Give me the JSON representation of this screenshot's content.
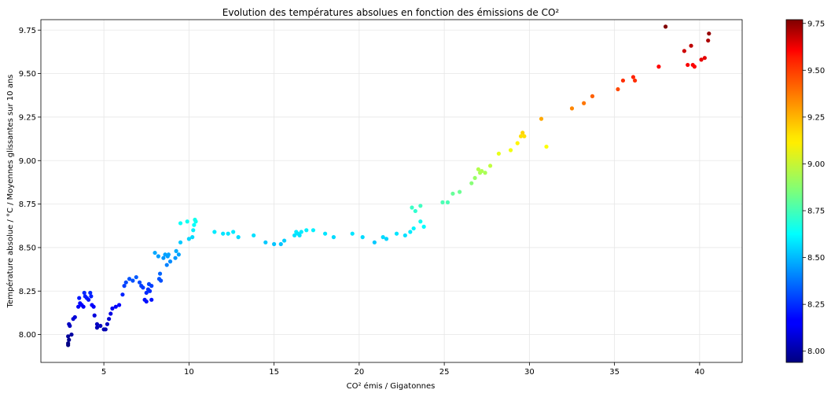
{
  "chart_data": {
    "type": "scatter",
    "title": "Evolution des températures absolues en fonction des émissions de CO²",
    "xlabel": "CO² émis / Gigatonnes",
    "ylabel": "Température absolue / °C / Moyennes glissantes sur 10 ans",
    "xlim": [
      1.3,
      42.5
    ],
    "ylim": [
      7.84,
      9.81
    ],
    "x_ticks": [
      5,
      10,
      15,
      20,
      25,
      30,
      35,
      40
    ],
    "x_tick_labels": [
      "5",
      "10",
      "15",
      "20",
      "25",
      "30",
      "35",
      "40"
    ],
    "y_ticks": [
      8.0,
      8.25,
      8.5,
      8.75,
      9.0,
      9.25,
      9.5,
      9.75
    ],
    "y_tick_labels": [
      "8.00",
      "8.25",
      "8.50",
      "8.75",
      "9.00",
      "9.25",
      "9.50",
      "9.75"
    ],
    "grid": true,
    "colormap": "jet",
    "colorbar": {
      "min": 7.94,
      "max": 9.77,
      "ticks": [
        8.0,
        8.25,
        8.5,
        8.75,
        9.0,
        9.25,
        9.5,
        9.75
      ],
      "tick_labels": [
        "8.00",
        "8.25",
        "8.50",
        "8.75",
        "9.00",
        "9.25",
        "9.50",
        "9.75"
      ]
    },
    "points": [
      [
        2.9,
        7.94
      ],
      [
        2.9,
        7.95
      ],
      [
        2.95,
        7.97
      ],
      [
        2.9,
        7.99
      ],
      [
        3.0,
        8.05
      ],
      [
        2.95,
        8.06
      ],
      [
        3.1,
        8.0
      ],
      [
        3.2,
        8.09
      ],
      [
        3.3,
        8.1
      ],
      [
        3.5,
        8.16
      ],
      [
        3.6,
        8.18
      ],
      [
        3.55,
        8.21
      ],
      [
        3.7,
        8.17
      ],
      [
        3.8,
        8.16
      ],
      [
        3.85,
        8.24
      ],
      [
        3.9,
        8.22
      ],
      [
        4.0,
        8.21
      ],
      [
        4.1,
        8.2
      ],
      [
        4.2,
        8.24
      ],
      [
        4.25,
        8.22
      ],
      [
        4.3,
        8.17
      ],
      [
        4.4,
        8.16
      ],
      [
        4.45,
        8.11
      ],
      [
        4.6,
        8.06
      ],
      [
        4.6,
        8.04
      ],
      [
        4.8,
        8.05
      ],
      [
        5.0,
        8.03
      ],
      [
        5.1,
        8.03
      ],
      [
        5.2,
        8.06
      ],
      [
        5.3,
        8.09
      ],
      [
        5.4,
        8.12
      ],
      [
        5.5,
        8.15
      ],
      [
        5.7,
        8.16
      ],
      [
        5.9,
        8.17
      ],
      [
        6.1,
        8.23
      ],
      [
        6.2,
        8.28
      ],
      [
        6.3,
        8.3
      ],
      [
        6.5,
        8.32
      ],
      [
        6.7,
        8.31
      ],
      [
        6.9,
        8.33
      ],
      [
        7.1,
        8.3
      ],
      [
        7.2,
        8.28
      ],
      [
        7.3,
        8.27
      ],
      [
        7.4,
        8.2
      ],
      [
        7.5,
        8.24
      ],
      [
        7.5,
        8.19
      ],
      [
        7.6,
        8.26
      ],
      [
        7.65,
        8.29
      ],
      [
        7.7,
        8.25
      ],
      [
        7.8,
        8.28
      ],
      [
        7.8,
        8.2
      ],
      [
        8.0,
        8.47
      ],
      [
        8.2,
        8.45
      ],
      [
        8.25,
        8.32
      ],
      [
        8.3,
        8.35
      ],
      [
        8.35,
        8.31
      ],
      [
        8.5,
        8.44
      ],
      [
        8.6,
        8.46
      ],
      [
        8.7,
        8.4
      ],
      [
        8.75,
        8.45
      ],
      [
        8.8,
        8.46
      ],
      [
        8.9,
        8.42
      ],
      [
        9.2,
        8.44
      ],
      [
        9.25,
        8.48
      ],
      [
        9.4,
        8.46
      ],
      [
        9.5,
        8.53
      ],
      [
        9.5,
        8.64
      ],
      [
        9.9,
        8.65
      ],
      [
        10.0,
        8.55
      ],
      [
        10.2,
        8.56
      ],
      [
        10.25,
        8.6
      ],
      [
        10.3,
        8.63
      ],
      [
        10.35,
        8.66
      ],
      [
        10.4,
        8.65
      ],
      [
        11.5,
        8.59
      ],
      [
        12.0,
        8.58
      ],
      [
        12.3,
        8.58
      ],
      [
        12.6,
        8.59
      ],
      [
        12.9,
        8.56
      ],
      [
        13.8,
        8.57
      ],
      [
        14.5,
        8.53
      ],
      [
        15.0,
        8.52
      ],
      [
        15.4,
        8.52
      ],
      [
        15.6,
        8.54
      ],
      [
        16.2,
        8.57
      ],
      [
        16.3,
        8.59
      ],
      [
        16.4,
        8.58
      ],
      [
        16.5,
        8.57
      ],
      [
        16.6,
        8.59
      ],
      [
        16.9,
        8.6
      ],
      [
        17.3,
        8.6
      ],
      [
        18.0,
        8.58
      ],
      [
        18.5,
        8.56
      ],
      [
        19.6,
        8.58
      ],
      [
        20.2,
        8.56
      ],
      [
        20.9,
        8.53
      ],
      [
        21.4,
        8.56
      ],
      [
        21.6,
        8.55
      ],
      [
        22.2,
        8.58
      ],
      [
        22.7,
        8.57
      ],
      [
        23.0,
        8.59
      ],
      [
        23.1,
        8.73
      ],
      [
        23.3,
        8.71
      ],
      [
        23.2,
        8.61
      ],
      [
        23.6,
        8.74
      ],
      [
        23.6,
        8.65
      ],
      [
        23.8,
        8.62
      ],
      [
        24.9,
        8.76
      ],
      [
        25.2,
        8.76
      ],
      [
        25.5,
        8.81
      ],
      [
        25.9,
        8.82
      ],
      [
        26.6,
        8.87
      ],
      [
        26.8,
        8.9
      ],
      [
        27.0,
        8.95
      ],
      [
        27.1,
        8.93
      ],
      [
        27.2,
        8.94
      ],
      [
        27.4,
        8.93
      ],
      [
        27.7,
        8.97
      ],
      [
        28.2,
        9.04
      ],
      [
        28.9,
        9.06
      ],
      [
        29.3,
        9.1
      ],
      [
        29.5,
        9.14
      ],
      [
        29.6,
        9.16
      ],
      [
        29.7,
        9.14
      ],
      [
        30.7,
        9.24
      ],
      [
        31.0,
        9.08
      ],
      [
        32.5,
        9.3
      ],
      [
        33.2,
        9.33
      ],
      [
        33.7,
        9.37
      ],
      [
        35.2,
        9.41
      ],
      [
        35.5,
        9.46
      ],
      [
        36.1,
        9.48
      ],
      [
        36.2,
        9.46
      ],
      [
        37.6,
        9.54
      ],
      [
        38.0,
        9.77
      ],
      [
        39.1,
        9.63
      ],
      [
        39.3,
        9.55
      ],
      [
        39.5,
        9.66
      ],
      [
        39.6,
        9.55
      ],
      [
        39.7,
        9.54
      ],
      [
        40.1,
        9.58
      ],
      [
        40.3,
        9.59
      ],
      [
        40.5,
        9.69
      ],
      [
        40.55,
        9.73
      ]
    ]
  }
}
